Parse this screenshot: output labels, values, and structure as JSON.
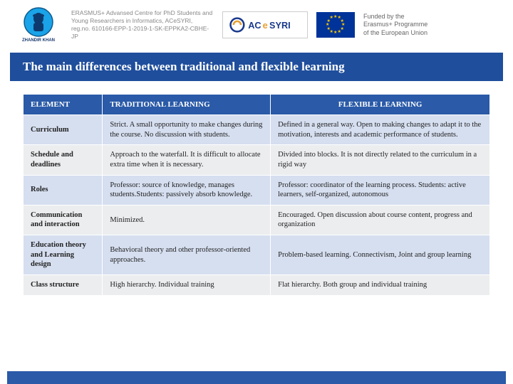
{
  "header": {
    "zhandir_label": "ZHANDIR KHAN",
    "erasmus_line1": "ERASMUS+ Advansed Centre for PhD Students and",
    "erasmus_line2": "Young Researchers in Informatics, ACeSYRI,",
    "erasmus_line3": "reg.no. 610166-EPP-1-2019-1-SK-EPPKA2-CBHE-JP",
    "acesyri_text": "ACeSYRI",
    "eu_line1": "Funded by the",
    "eu_line2": "Erasmus+ Programme",
    "eu_line3": "of the European Union"
  },
  "title": "The main differences between traditional and flexible learning",
  "table": {
    "columns": [
      "ELEMENT",
      "TRADITIONAL LEARNING",
      "FLEXIBLE LEARNING"
    ],
    "rows": [
      [
        "Curriculum",
        "Strict. A small opportunity to make changes during the course. No discussion with students.",
        "Defined in a general way. Open to making changes to adapt it to the motivation, interests and academic performance of students."
      ],
      [
        "Schedule and deadlines",
        "Approach to the waterfall. It is difficult to allocate extra time when it is necessary.",
        "Divided into blocks. It is not directly related to the curriculum in a rigid way"
      ],
      [
        "Roles",
        "Professor: source of knowledge, manages students.Students: passively absorb knowledge.",
        "Professor: coordinator of the learning process. Students: active learners, self-organized, autonomous"
      ],
      [
        "Communication and interaction",
        "Minimized.",
        "Encouraged. Open discussion about course content, progress and organization"
      ],
      [
        "Education theory and Learning design",
        "Behavioral theory and other professor-oriented approaches.",
        "Problem-based learning. Connectivism, Joint and group learning"
      ],
      [
        "Class structure",
        "High hierarchy. Individual training",
        "Flat hierarchy. Both group and individual training"
      ]
    ],
    "header_bg": "#2a5aa8",
    "header_color": "#ffffff",
    "row_odd_bg": "#d6dff0",
    "row_even_bg": "#ecedef",
    "border_color": "#ffffff",
    "font_size": 10.5,
    "col_widths_pct": [
      17,
      36,
      47
    ]
  },
  "colors": {
    "title_bg": "#1f4e9c",
    "title_color": "#ffffff",
    "eu_flag_bg": "#003399",
    "eu_star": "#ffcc00",
    "footer_bg": "#2a5aa8"
  }
}
